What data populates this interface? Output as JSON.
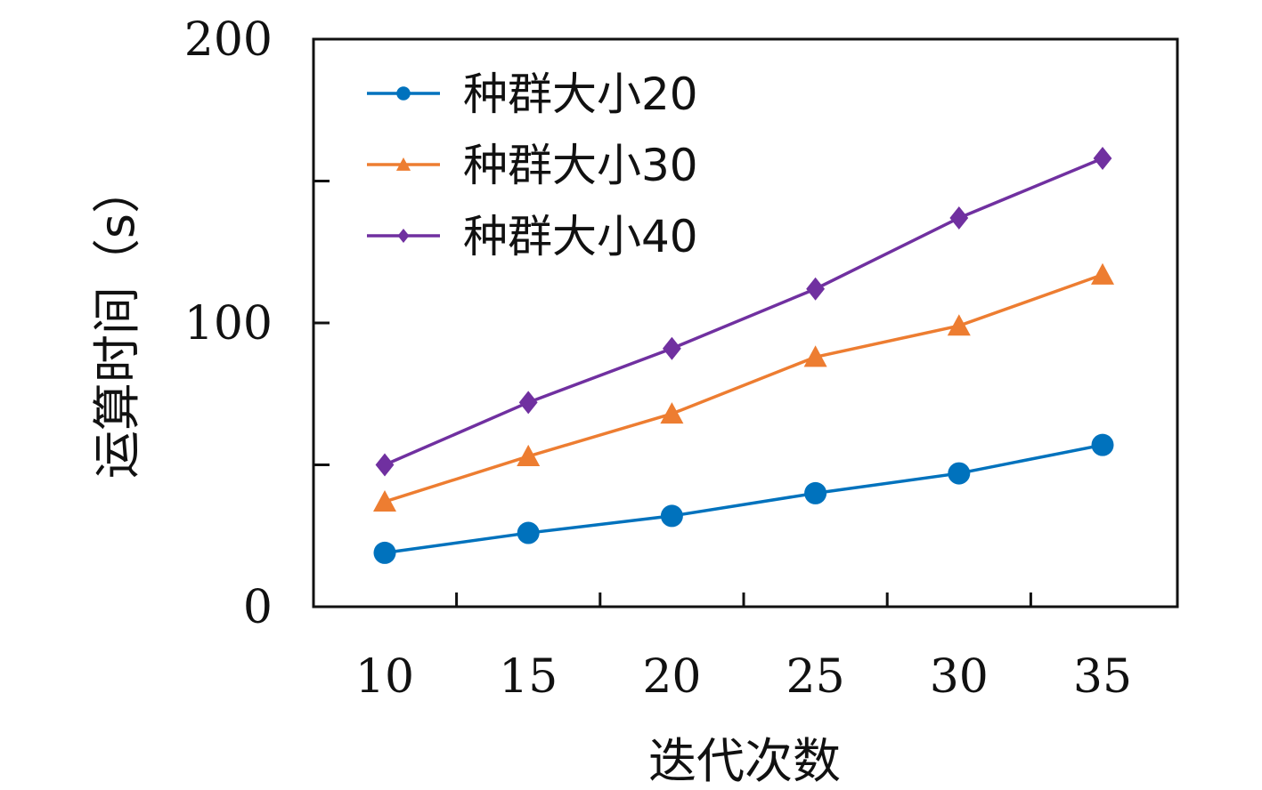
{
  "chart_data": {
    "type": "line",
    "xlabel": "迭代次数",
    "ylabel": "运算时间（s）",
    "x": [
      10,
      15,
      20,
      25,
      30,
      35
    ],
    "xticks": [
      "10",
      "15",
      "20",
      "25",
      "30",
      "35"
    ],
    "ylim": [
      0,
      200
    ],
    "yticks": [
      0,
      50,
      100,
      150,
      200
    ],
    "ytick_labels": [
      "0",
      "",
      "100",
      "",
      "200"
    ],
    "grid": false,
    "legend_position": "top-left",
    "series": [
      {
        "name": "种群大小20",
        "values": [
          19,
          26,
          32,
          40,
          47,
          57
        ],
        "color": "#0072BD",
        "marker": "circle"
      },
      {
        "name": "种群大小30",
        "values": [
          37,
          53,
          68,
          88,
          99,
          117
        ],
        "color": "#ED7D31",
        "marker": "triangle"
      },
      {
        "name": "种群大小40",
        "values": [
          50,
          72,
          91,
          112,
          137,
          158
        ],
        "color": "#7030A0",
        "marker": "diamond"
      }
    ]
  }
}
